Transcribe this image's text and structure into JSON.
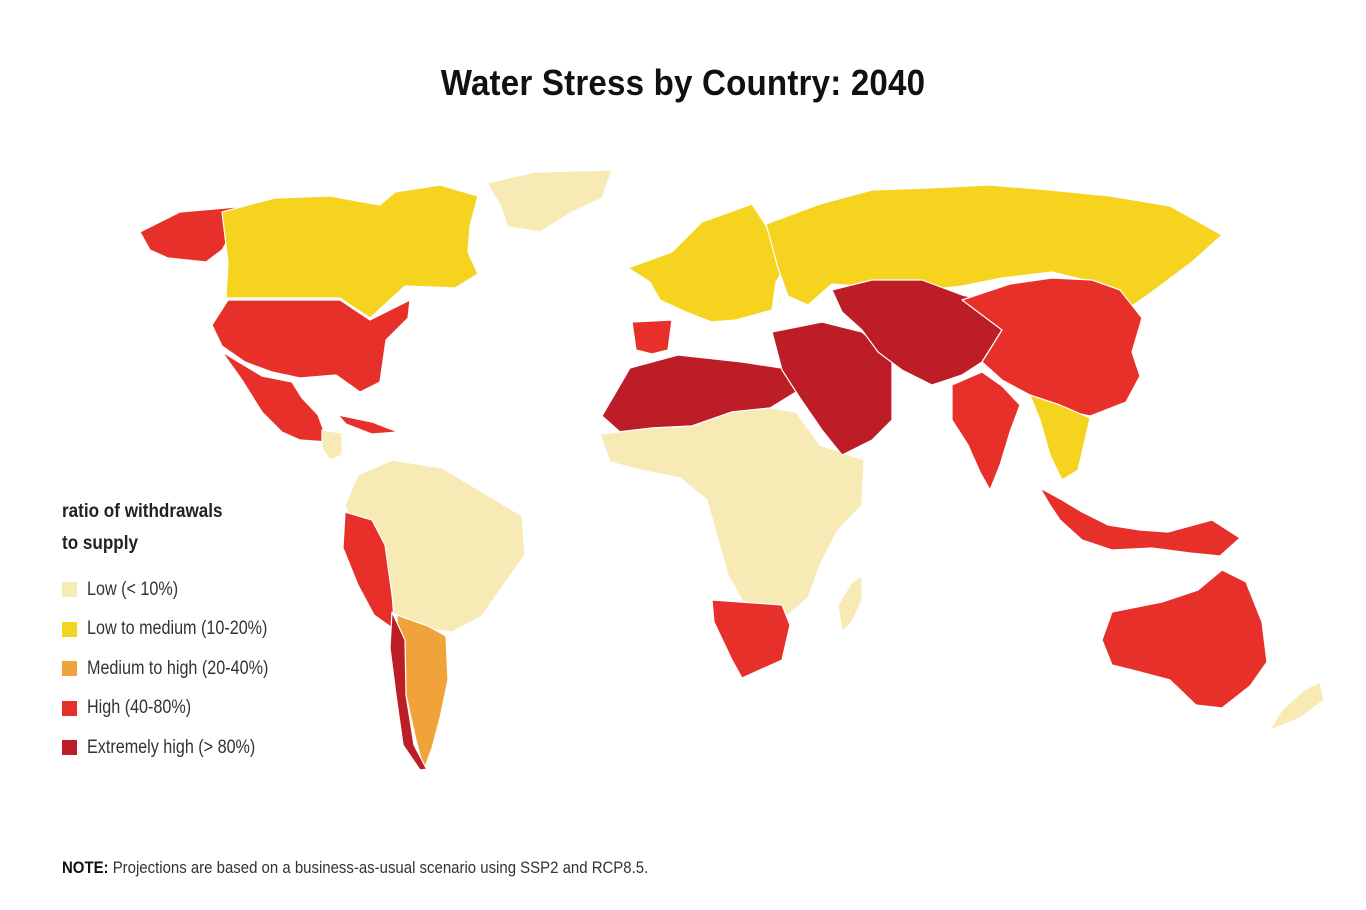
{
  "title": "Water Stress by Country: 2040",
  "legend": {
    "title_line1": "ratio of withdrawals",
    "title_line2": "to supply",
    "items": [
      {
        "label": "Low (< 10%)",
        "color": "#f8eab4"
      },
      {
        "label": "Low to medium (10-20%)",
        "color": "#f5d31e"
      },
      {
        "label": "Medium to high  (20-40%)",
        "color": "#f0a33a"
      },
      {
        "label": "High (40-80%)",
        "color": "#e8302a"
      },
      {
        "label": "Extremely high (> 80%)",
        "color": "#bc1d26"
      }
    ]
  },
  "note": {
    "label": "NOTE:",
    "text": " Projections are based on a business-as-usual scenario using SSP2 and RCP8.5."
  },
  "colors": {
    "border": "#ffffff",
    "background": "#ffffff"
  },
  "regions": [
    {
      "name": "alaska",
      "level": "high"
    },
    {
      "name": "canada",
      "level": "low-medium"
    },
    {
      "name": "greenland",
      "level": "low"
    },
    {
      "name": "united-states",
      "level": "high"
    },
    {
      "name": "mexico",
      "level": "high"
    },
    {
      "name": "central-america",
      "level": "low"
    },
    {
      "name": "caribbean",
      "level": "high"
    },
    {
      "name": "south-america",
      "level": "low"
    },
    {
      "name": "peru-coast",
      "level": "high"
    },
    {
      "name": "argentina",
      "level": "medium-high"
    },
    {
      "name": "chile",
      "level": "extremely-high"
    },
    {
      "name": "iberia",
      "level": "high"
    },
    {
      "name": "western-europe",
      "level": "low-medium"
    },
    {
      "name": "russia",
      "level": "low-medium"
    },
    {
      "name": "north-africa",
      "level": "extremely-high"
    },
    {
      "name": "sub-saharan-africa",
      "level": "low"
    },
    {
      "name": "south-africa",
      "level": "high"
    },
    {
      "name": "middle-east",
      "level": "extremely-high"
    },
    {
      "name": "central-asia",
      "level": "extremely-high"
    },
    {
      "name": "china",
      "level": "high"
    },
    {
      "name": "india",
      "level": "high"
    },
    {
      "name": "southeast-asia",
      "level": "low-medium"
    },
    {
      "name": "indonesia",
      "level": "high"
    },
    {
      "name": "australia",
      "level": "high"
    },
    {
      "name": "madagascar",
      "level": "low"
    },
    {
      "name": "new-zealand",
      "level": "low"
    }
  ]
}
